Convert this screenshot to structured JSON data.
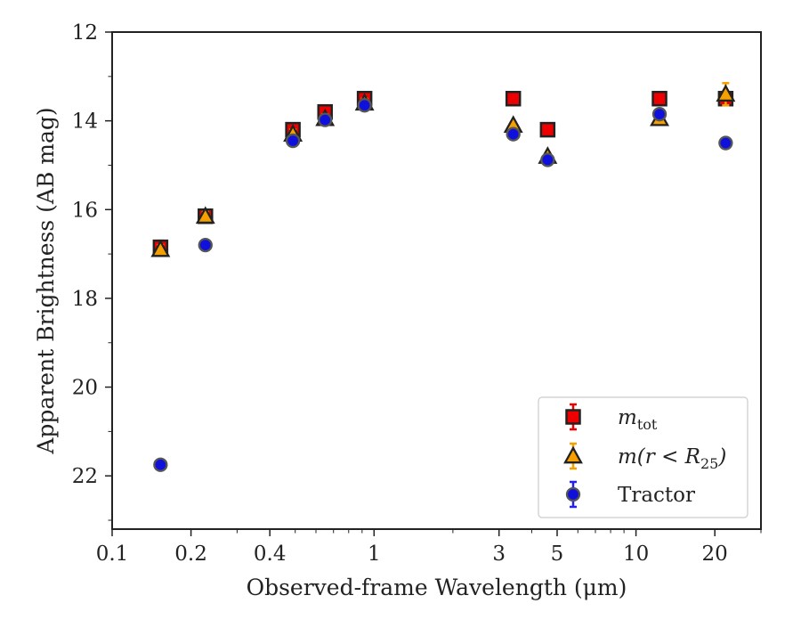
{
  "chart_data": {
    "type": "scatter",
    "title": "",
    "xlabel": "Observed-frame Wavelength (μm)",
    "ylabel": "Apparent Brightness (AB mag)",
    "xscale": "log",
    "xlim": [
      0.1,
      30
    ],
    "ylim": [
      23.2,
      12
    ],
    "y_inverted": true,
    "grid": false,
    "legend_position": "lower-right",
    "x_ticks": [
      {
        "value": 0.1,
        "label": "0.1"
      },
      {
        "value": 0.2,
        "label": "0.2"
      },
      {
        "value": 0.4,
        "label": "0.4"
      },
      {
        "value": 1,
        "label": "1"
      },
      {
        "value": 3,
        "label": "3"
      },
      {
        "value": 5,
        "label": "5"
      },
      {
        "value": 10,
        "label": "10"
      },
      {
        "value": 20,
        "label": "20"
      }
    ],
    "y_ticks": [
      {
        "value": 12,
        "label": "12"
      },
      {
        "value": 14,
        "label": "14"
      },
      {
        "value": 16,
        "label": "16"
      },
      {
        "value": 18,
        "label": "18"
      },
      {
        "value": 20,
        "label": "20"
      },
      {
        "value": 22,
        "label": "22"
      }
    ],
    "series": [
      {
        "name": "m_tot",
        "legend_main": "m",
        "legend_sub": "tot",
        "marker": "square",
        "color": "#ee0000",
        "errcolor": "#ee0000",
        "x": [
          0.153,
          0.227,
          0.49,
          0.65,
          0.92,
          3.4,
          4.6,
          12.3,
          22.0
        ],
        "y": [
          16.85,
          16.15,
          14.2,
          13.8,
          13.5,
          13.5,
          14.2,
          13.5,
          13.5
        ],
        "yerr": [
          0.15,
          0.1,
          0.1,
          0.1,
          0.1,
          0.03,
          0.03,
          0.05,
          0.15
        ]
      },
      {
        "name": "m(r < R_25)",
        "legend_main": "m(r < R",
        "legend_sub": "25",
        "legend_tail": ")",
        "marker": "triangle",
        "color": "#f5a000",
        "errcolor": "#f5a000",
        "x": [
          0.153,
          0.227,
          0.49,
          0.65,
          0.92,
          3.4,
          4.6,
          12.3,
          22.0
        ],
        "y": [
          16.9,
          16.15,
          14.3,
          13.95,
          13.6,
          14.1,
          14.8,
          13.95,
          13.4
        ],
        "yerr": [
          0.1,
          0.1,
          0.1,
          0.1,
          0.1,
          0.05,
          0.05,
          0.05,
          0.25
        ]
      },
      {
        "name": "Tractor",
        "legend_main": "Tractor",
        "marker": "circle",
        "color": "#1010dd",
        "errcolor": "#2222ee",
        "x": [
          0.153,
          0.227,
          0.49,
          0.65,
          0.92,
          3.4,
          4.6,
          12.3,
          22.0
        ],
        "y": [
          21.75,
          16.8,
          14.45,
          13.98,
          13.65,
          14.3,
          14.88,
          13.85,
          14.5
        ],
        "yerr": [
          0.1,
          0.05,
          0.05,
          0.05,
          0.05,
          0.03,
          0.05,
          0.1,
          0.05
        ]
      }
    ]
  }
}
